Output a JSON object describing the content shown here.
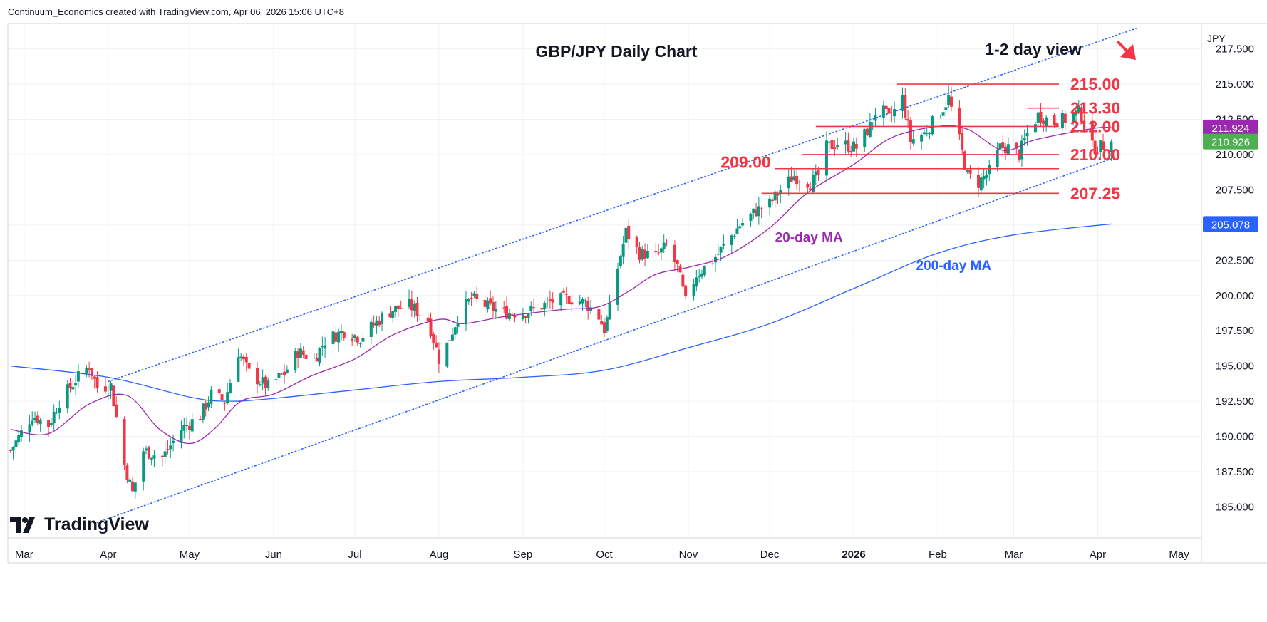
{
  "header": {
    "attribution": "Continuum_Economics created with TradingView.com, Apr 06, 2026 15:06 UTC+8"
  },
  "footer": {
    "brand": "TradingView"
  },
  "colors": {
    "up": "#089981",
    "down": "#f23645",
    "level": "#f23645",
    "ma20": "#9c27b0",
    "ma200": "#2962ff",
    "channel": "#2962ff",
    "last_price": "#4caf50",
    "grid": "#eff2f5"
  },
  "chart_data": {
    "type": "candlestick",
    "title": "GBP/JPY Daily Chart",
    "view_label": "1-2 day view",
    "view_arrow": "down-right",
    "y_axis_unit": "JPY",
    "ylim": [
      182.8,
      219.3
    ],
    "y_ticks": [
      "185.000",
      "187.500",
      "190.000",
      "192.500",
      "195.000",
      "197.500",
      "200.000",
      "202.500",
      "205.000",
      "207.500",
      "210.000",
      "212.500",
      "215.000",
      "217.500"
    ],
    "x_ticks": [
      {
        "label": "Mar",
        "date": "2025-03-01"
      },
      {
        "label": "Apr",
        "date": "2025-04-01"
      },
      {
        "label": "May",
        "date": "2025-05-01"
      },
      {
        "label": "Jun",
        "date": "2025-06-01"
      },
      {
        "label": "Jul",
        "date": "2025-07-01"
      },
      {
        "label": "Aug",
        "date": "2025-08-01"
      },
      {
        "label": "Sep",
        "date": "2025-09-01"
      },
      {
        "label": "Oct",
        "date": "2025-10-01"
      },
      {
        "label": "Nov",
        "date": "2025-11-01"
      },
      {
        "label": "Dec",
        "date": "2025-12-01"
      },
      {
        "label": "2026",
        "date": "2026-01-01"
      },
      {
        "label": "Feb",
        "date": "2026-02-01"
      },
      {
        "label": "Mar",
        "date": "2026-03-01"
      },
      {
        "label": "Apr",
        "date": "2026-04-01"
      },
      {
        "label": "May",
        "date": "2026-05-01"
      }
    ],
    "xlim": [
      "2025-02-23",
      "2026-05-09"
    ],
    "close_path": [
      [
        "2025-02-24",
        189.0
      ],
      [
        "2025-03-04",
        191.5
      ],
      [
        "2025-03-10",
        190.8
      ],
      [
        "2025-03-14",
        192.5
      ],
      [
        "2025-03-20",
        194.0
      ],
      [
        "2025-03-25",
        195.0
      ],
      [
        "2025-03-28",
        193.5
      ],
      [
        "2025-04-02",
        193.6
      ],
      [
        "2025-04-07",
        188.0
      ],
      [
        "2025-04-10",
        186.0
      ],
      [
        "2025-04-14",
        189.0
      ],
      [
        "2025-04-21",
        188.5
      ],
      [
        "2025-04-28",
        190.5
      ],
      [
        "2025-05-05",
        191.5
      ],
      [
        "2025-05-09",
        193.0
      ],
      [
        "2025-05-14",
        192.5
      ],
      [
        "2025-05-19",
        196.0
      ],
      [
        "2025-05-23",
        194.5
      ],
      [
        "2025-05-30",
        193.5
      ],
      [
        "2025-06-05",
        194.5
      ],
      [
        "2025-06-10",
        196.0
      ],
      [
        "2025-06-16",
        195.5
      ],
      [
        "2025-06-20",
        196.8
      ],
      [
        "2025-06-27",
        197.5
      ],
      [
        "2025-07-03",
        197.0
      ],
      [
        "2025-07-10",
        198.3
      ],
      [
        "2025-07-15",
        199.0
      ],
      [
        "2025-07-21",
        199.3
      ],
      [
        "2025-07-28",
        198.3
      ],
      [
        "2025-08-01",
        195.5
      ],
      [
        "2025-08-04",
        196.5
      ],
      [
        "2025-08-08",
        198.5
      ],
      [
        "2025-08-13",
        199.8
      ],
      [
        "2025-08-19",
        199.2
      ],
      [
        "2025-08-25",
        198.8
      ],
      [
        "2025-09-01",
        198.8
      ],
      [
        "2025-09-05",
        199.0
      ],
      [
        "2025-09-12",
        199.6
      ],
      [
        "2025-09-18",
        199.8
      ],
      [
        "2025-09-24",
        199.5
      ],
      [
        "2025-09-29",
        198.5
      ],
      [
        "2025-10-01",
        197.6
      ],
      [
        "2025-10-03",
        199.0
      ],
      [
        "2025-10-06",
        202.0
      ],
      [
        "2025-10-09",
        204.5
      ],
      [
        "2025-10-14",
        203.0
      ],
      [
        "2025-10-20",
        202.8
      ],
      [
        "2025-10-24",
        203.5
      ],
      [
        "2025-10-28",
        202.0
      ],
      [
        "2025-10-31",
        199.5
      ],
      [
        "2025-11-04",
        201.5
      ],
      [
        "2025-11-10",
        202.5
      ],
      [
        "2025-11-14",
        203.5
      ],
      [
        "2025-11-20",
        205.0
      ],
      [
        "2025-11-26",
        206.0
      ],
      [
        "2025-12-01",
        206.5
      ],
      [
        "2025-12-05",
        207.5
      ],
      [
        "2025-12-10",
        208.5
      ],
      [
        "2025-12-16",
        208.0
      ],
      [
        "2025-12-19",
        208.5
      ],
      [
        "2025-12-22",
        210.5
      ],
      [
        "2025-12-26",
        210.8
      ],
      [
        "2026-01-02",
        210.5
      ],
      [
        "2026-01-07",
        212.0
      ],
      [
        "2026-01-10",
        213.5
      ],
      [
        "2026-01-14",
        212.5
      ],
      [
        "2026-01-19",
        214.0
      ],
      [
        "2026-01-22",
        211.0
      ],
      [
        "2026-01-27",
        211.5
      ],
      [
        "2026-02-02",
        213.0
      ],
      [
        "2026-02-05",
        214.0
      ],
      [
        "2026-02-09",
        211.0
      ],
      [
        "2026-02-12",
        208.5
      ],
      [
        "2026-02-16",
        208.0
      ],
      [
        "2026-02-20",
        208.8
      ],
      [
        "2026-02-24",
        210.5
      ],
      [
        "2026-02-27",
        210.5
      ],
      [
        "2026-03-03",
        210.0
      ],
      [
        "2026-03-06",
        211.5
      ],
      [
        "2026-03-10",
        212.8
      ],
      [
        "2026-03-16",
        212.3
      ],
      [
        "2026-03-20",
        212.5
      ],
      [
        "2026-03-25",
        213.0
      ],
      [
        "2026-03-27",
        212.5
      ],
      [
        "2026-03-30",
        210.5
      ],
      [
        "2026-04-01",
        210.5
      ],
      [
        "2026-04-06",
        210.926
      ]
    ],
    "series": [
      {
        "name": "20-day MA",
        "color": "#9c27b0",
        "points": [
          [
            "2025-02-24",
            190.5
          ],
          [
            "2025-03-10",
            190.2
          ],
          [
            "2025-03-25",
            192.3
          ],
          [
            "2025-04-08",
            192.9
          ],
          [
            "2025-04-20",
            190.5
          ],
          [
            "2025-05-01",
            189.5
          ],
          [
            "2025-05-10",
            190.5
          ],
          [
            "2025-05-20",
            192.5
          ],
          [
            "2025-06-01",
            193.0
          ],
          [
            "2025-06-15",
            194.3
          ],
          [
            "2025-07-01",
            195.5
          ],
          [
            "2025-07-15",
            197.2
          ],
          [
            "2025-08-01",
            198.3
          ],
          [
            "2025-08-10",
            198.0
          ],
          [
            "2025-08-25",
            198.5
          ],
          [
            "2025-09-15",
            199.0
          ],
          [
            "2025-09-29",
            199.2
          ],
          [
            "2025-10-10",
            200.3
          ],
          [
            "2025-10-20",
            201.5
          ],
          [
            "2025-11-01",
            202.0
          ],
          [
            "2025-11-15",
            202.8
          ],
          [
            "2025-12-01",
            204.8
          ],
          [
            "2025-12-15",
            207.3
          ],
          [
            "2026-01-01",
            209.3
          ],
          [
            "2026-01-15",
            211.2
          ],
          [
            "2026-02-01",
            212.0
          ],
          [
            "2026-02-12",
            211.8
          ],
          [
            "2026-02-25",
            210.3
          ],
          [
            "2026-03-08",
            211.0
          ],
          [
            "2026-03-20",
            211.5
          ],
          [
            "2026-04-01",
            211.9
          ],
          [
            "2026-04-06",
            211.924
          ]
        ]
      },
      {
        "name": "200-day MA",
        "color": "#2962ff",
        "points": [
          [
            "2025-02-24",
            195.0
          ],
          [
            "2025-04-01",
            194.2
          ],
          [
            "2025-05-01",
            192.8
          ],
          [
            "2025-05-15",
            192.5
          ],
          [
            "2025-06-01",
            192.7
          ],
          [
            "2025-07-01",
            193.3
          ],
          [
            "2025-08-01",
            193.9
          ],
          [
            "2025-09-01",
            194.2
          ],
          [
            "2025-10-01",
            194.7
          ],
          [
            "2025-11-01",
            196.3
          ],
          [
            "2025-12-01",
            198.0
          ],
          [
            "2026-01-01",
            200.5
          ],
          [
            "2026-02-01",
            203.0
          ],
          [
            "2026-03-01",
            204.3
          ],
          [
            "2026-04-06",
            205.078
          ]
        ]
      }
    ],
    "channel": {
      "upper": [
        [
          "2025-04-01",
          193.9
        ],
        [
          "2026-04-16",
          219.0
        ]
      ],
      "lower": [
        [
          "2025-03-28",
          183.9
        ],
        [
          "2026-04-06",
          209.7
        ]
      ]
    },
    "levels": [
      {
        "label": "215.00",
        "value": 215.0,
        "from": "2026-01-17"
      },
      {
        "label": "213.30",
        "value": 213.3,
        "from": "2026-03-06"
      },
      {
        "label": "212.00",
        "value": 212.0,
        "from": "2025-12-18"
      },
      {
        "label": "210.00",
        "value": 210.0,
        "from": "2025-12-13"
      },
      {
        "label": "209.00",
        "value": 209.0,
        "from": "2025-12-03",
        "label_side": "left"
      },
      {
        "label": "207.25",
        "value": 207.25,
        "from": "2025-11-28"
      }
    ],
    "annotations": [
      {
        "text": "20-day MA",
        "date": "2025-12-03",
        "y": 204.0,
        "color": "#9c27b0"
      },
      {
        "text": "200-day MA",
        "date": "2026-01-24",
        "y": 202.0,
        "color": "#2962ff"
      }
    ],
    "price_tags": [
      {
        "label": "211.924",
        "value": 211.924,
        "color": "#9c27b0"
      },
      {
        "label": "210.926",
        "value": 210.926,
        "color": "#4caf50"
      },
      {
        "label": "205.078",
        "value": 205.078,
        "color": "#2962ff"
      }
    ]
  }
}
